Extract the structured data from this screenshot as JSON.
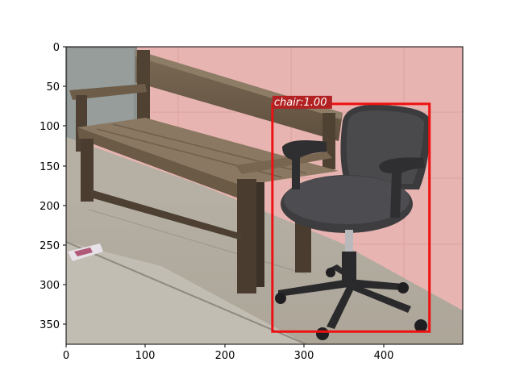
{
  "axes": {
    "x_ticks": [
      "0",
      "100",
      "200",
      "300",
      "400"
    ],
    "y_ticks": [
      "0",
      "50",
      "100",
      "150",
      "200",
      "250",
      "300",
      "350"
    ]
  },
  "detection": {
    "label": "chair:1.00",
    "box": {
      "x0": 260,
      "y0": 72,
      "x1": 458,
      "y1": 359
    },
    "box_color": "#ee1111",
    "label_bg": "#b22222"
  },
  "image_extent": {
    "width": 500,
    "height": 375
  }
}
